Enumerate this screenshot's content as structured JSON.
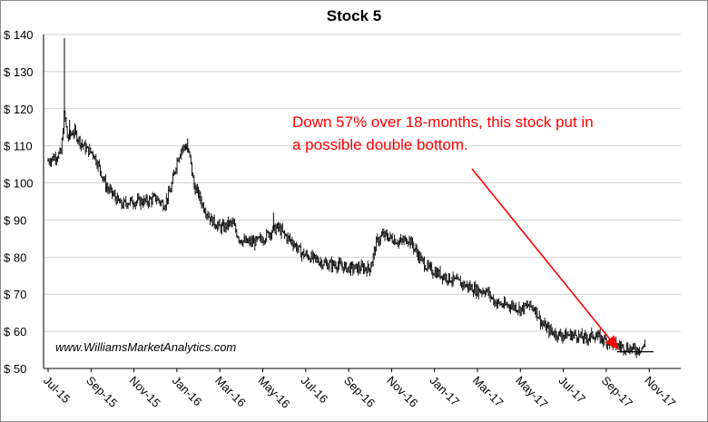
{
  "chart_data": {
    "type": "candlestick",
    "title": "Stock 5",
    "xlabel": "",
    "ylabel": "",
    "ylim": [
      50,
      140
    ],
    "y_ticks": [
      "$ 50",
      "$ 60",
      "$ 70",
      "$ 80",
      "$ 90",
      "$ 100",
      "$ 110",
      "$ 120",
      "$ 130",
      "$ 140"
    ],
    "x_ticks": [
      "Jul-15",
      "Sep-15",
      "Nov-15",
      "Jan-16",
      "Mar-16",
      "May-16",
      "Jul-16",
      "Sep-16",
      "Nov-16",
      "Jan-17",
      "Mar-17",
      "May-17",
      "Jul-17",
      "Sep-17",
      "Nov-17"
    ],
    "grid": true,
    "legend": "none",
    "series": [
      {
        "points": [
          [
            0,
            106
          ],
          [
            0.15,
            107
          ],
          [
            0.3,
            108
          ],
          [
            0.38,
            119
          ],
          [
            0.45,
            112
          ],
          [
            0.6,
            114
          ],
          [
            0.75,
            111
          ],
          [
            0.9,
            109
          ],
          [
            1.05,
            108
          ],
          [
            1.2,
            104
          ],
          [
            1.35,
            99
          ],
          [
            1.5,
            97
          ],
          [
            1.7,
            94
          ],
          [
            1.9,
            95
          ],
          [
            2.1,
            95
          ],
          [
            2.3,
            95
          ],
          [
            2.5,
            96
          ],
          [
            2.7,
            94
          ],
          [
            2.85,
            98
          ],
          [
            3.0,
            106
          ],
          [
            3.1,
            109
          ],
          [
            3.2,
            110
          ],
          [
            3.3,
            107
          ],
          [
            3.4,
            99
          ],
          [
            3.5,
            97
          ],
          [
            3.6,
            94
          ],
          [
            3.7,
            92
          ],
          [
            3.8,
            90
          ],
          [
            3.9,
            89
          ],
          [
            4.0,
            88
          ],
          [
            4.1,
            88
          ],
          [
            4.2,
            89
          ],
          [
            4.3,
            89
          ],
          [
            4.45,
            85
          ],
          [
            4.6,
            84
          ],
          [
            4.8,
            84
          ],
          [
            5.0,
            85
          ],
          [
            5.2,
            87
          ],
          [
            5.35,
            88
          ],
          [
            5.5,
            86
          ],
          [
            5.7,
            84
          ],
          [
            5.9,
            81
          ],
          [
            6.1,
            80
          ],
          [
            6.3,
            79
          ],
          [
            6.5,
            78
          ],
          [
            6.7,
            78
          ],
          [
            7.0,
            77
          ],
          [
            7.3,
            77
          ],
          [
            7.5,
            77
          ],
          [
            7.65,
            84
          ],
          [
            7.8,
            86
          ],
          [
            8.0,
            85
          ],
          [
            8.2,
            84
          ],
          [
            8.4,
            85
          ],
          [
            8.55,
            82
          ],
          [
            8.7,
            79
          ],
          [
            8.85,
            77
          ],
          [
            9.0,
            76
          ],
          [
            9.2,
            75
          ],
          [
            9.4,
            74
          ],
          [
            9.6,
            73
          ],
          [
            9.8,
            72
          ],
          [
            10.0,
            71
          ],
          [
            10.2,
            71
          ],
          [
            10.4,
            68
          ],
          [
            10.6,
            67
          ],
          [
            10.8,
            67
          ],
          [
            11.0,
            66
          ],
          [
            11.2,
            67
          ],
          [
            11.35,
            66
          ],
          [
            11.5,
            62
          ],
          [
            11.7,
            60
          ],
          [
            11.9,
            59
          ],
          [
            12.1,
            59
          ],
          [
            12.3,
            59
          ],
          [
            12.5,
            58
          ],
          [
            12.7,
            59
          ],
          [
            12.9,
            58
          ],
          [
            13.1,
            57
          ],
          [
            13.3,
            56
          ],
          [
            13.5,
            55.5
          ],
          [
            13.7,
            55
          ],
          [
            13.8,
            55.5
          ],
          [
            13.9,
            56
          ]
        ],
        "spikes": [
          [
            0.38,
            139
          ],
          [
            3.25,
            112
          ],
          [
            0.5,
            117
          ],
          [
            5.25,
            92
          ]
        ]
      }
    ],
    "annotations": {
      "text": "Down 57% over 18-months, this stock put in a possible double bottom.",
      "watermark": "www.WilliamsMarketAnalytics.com",
      "arrow_color": "#ff0000",
      "double_bottom_level": 54.5
    },
    "colors": {
      "candles": "#000000",
      "grid": "#d0d0d0",
      "annotation": "#ff0000",
      "frame": "#8c8c8c"
    }
  }
}
